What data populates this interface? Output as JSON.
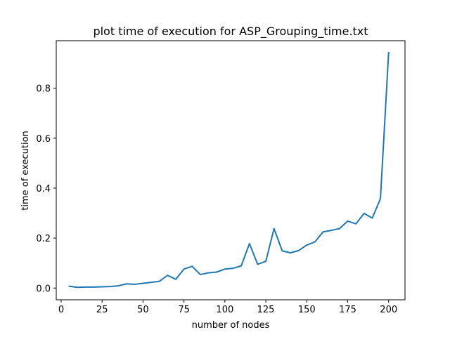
{
  "chart_data": {
    "type": "line",
    "title": "plot time of execution for ASP_Grouping_time.txt",
    "xlabel": "number of nodes",
    "ylabel": "time of execution",
    "xlim": [
      -3,
      210
    ],
    "ylim": [
      -0.047,
      0.99
    ],
    "xticks": [
      0,
      25,
      50,
      75,
      100,
      125,
      150,
      175,
      200
    ],
    "yticks": [
      0.0,
      0.2,
      0.4,
      0.6,
      0.8
    ],
    "ytick_labels": [
      "0.0",
      "0.2",
      "0.4",
      "0.6",
      "0.8"
    ],
    "grid": false,
    "color": "#1f77b4",
    "x": [
      5,
      10,
      15,
      20,
      25,
      30,
      35,
      40,
      45,
      50,
      55,
      60,
      65,
      70,
      75,
      80,
      85,
      90,
      95,
      100,
      105,
      110,
      115,
      120,
      125,
      130,
      135,
      140,
      145,
      150,
      155,
      160,
      165,
      170,
      175,
      180,
      185,
      190,
      195,
      200
    ],
    "y": [
      0.007,
      0.003,
      0.004,
      0.004,
      0.005,
      0.006,
      0.009,
      0.017,
      0.015,
      0.019,
      0.023,
      0.027,
      0.051,
      0.035,
      0.076,
      0.087,
      0.054,
      0.061,
      0.064,
      0.076,
      0.079,
      0.089,
      0.178,
      0.095,
      0.107,
      0.238,
      0.149,
      0.141,
      0.15,
      0.172,
      0.185,
      0.225,
      0.231,
      0.238,
      0.268,
      0.257,
      0.299,
      0.28,
      0.358,
      0.942
    ]
  }
}
